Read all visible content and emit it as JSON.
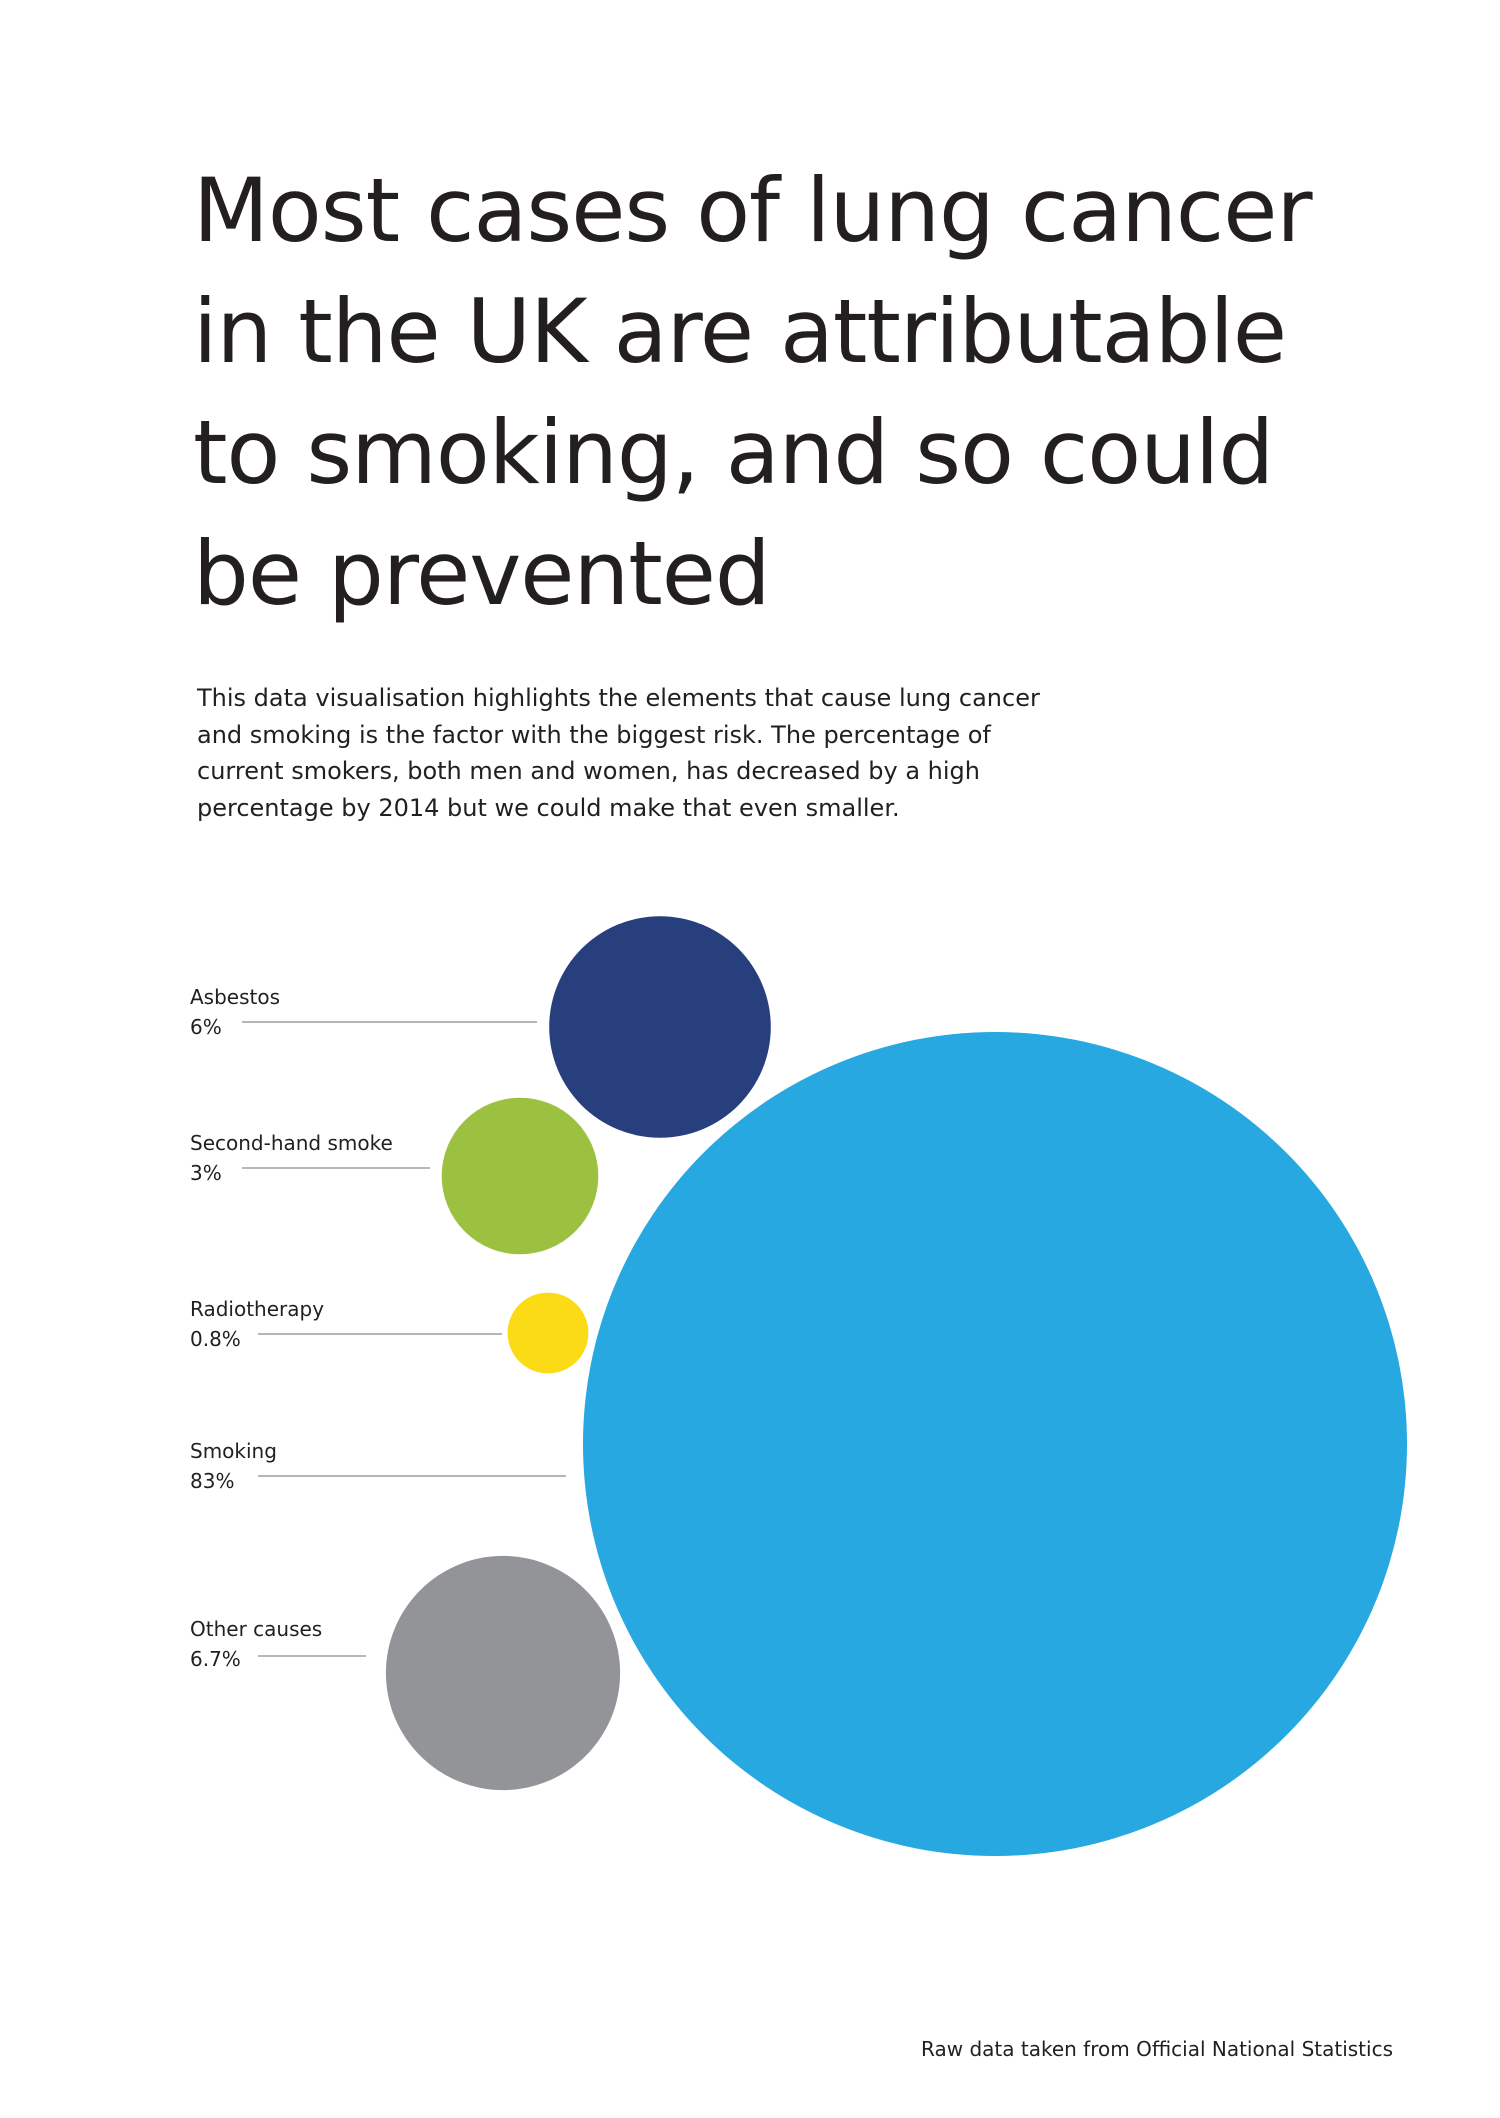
{
  "title_lines": [
    "Most cases of lung cancer",
    "in the UK are attributable",
    "to smoking, and so could",
    "be prevented"
  ],
  "intro_lines": [
    "This data visualisation highlights the elements that cause lung cancer",
    "and smoking is the factor with the biggest risk. The percentage of",
    "current smokers, both men and women, has decreased by a high",
    "percentage by 2014 but we could make that even smaller."
  ],
  "source": "Raw data taken from Official National Statistics",
  "chart_data": {
    "type": "bubble",
    "unit": "%",
    "items": [
      {
        "label": "Asbestos",
        "value": 6,
        "value_label": "6%",
        "color": "#283f7d"
      },
      {
        "label": "Second-hand smoke",
        "value": 3,
        "value_label": "3%",
        "color": "#9cc03f"
      },
      {
        "label": "Radiotherapy",
        "value": 0.8,
        "value_label": "0.8%",
        "color": "#fbdb16"
      },
      {
        "label": "Smoking",
        "value": 83,
        "value_label": "83%",
        "color": "#27a8e0"
      },
      {
        "label": "Other causes",
        "value": 6.7,
        "value_label": "6.7%",
        "color": "#929497"
      }
    ]
  }
}
